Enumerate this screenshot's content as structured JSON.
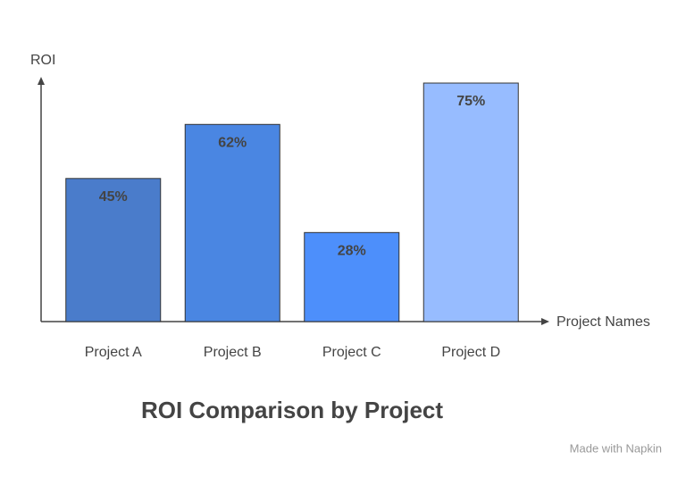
{
  "chart_data": {
    "type": "bar",
    "title": "ROI Comparison by Project",
    "y_label": "ROI",
    "x_label": "Project Names",
    "categories": [
      "Project A",
      "Project B",
      "Project C",
      "Project D"
    ],
    "values": [
      45,
      62,
      28,
      75
    ],
    "value_labels": [
      "45%",
      "62%",
      "28%",
      "75%"
    ],
    "colors": [
      "#4a7ccb",
      "#4a86e2",
      "#4d8ffb",
      "#97bcff"
    ],
    "ylim": [
      0,
      75
    ],
    "watermark": "Made with Napkin"
  }
}
